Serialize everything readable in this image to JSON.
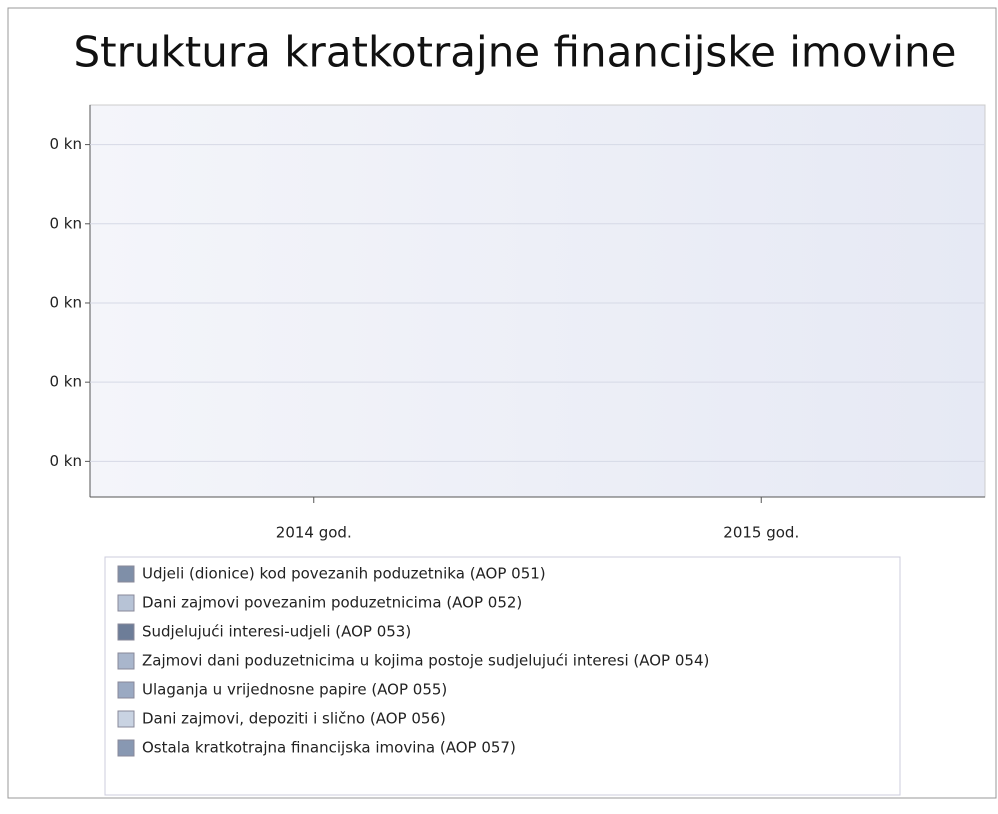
{
  "chart_data": {
    "type": "bar",
    "title": "Struktura kratkotrajne financijske imovine",
    "categories": [
      "2014 god.",
      "2015 god."
    ],
    "series": [
      {
        "name": "Udjeli (dionice) kod povezanih poduzetnika (AOP 051)",
        "color": "#7f8fa8",
        "values": [
          0,
          0
        ]
      },
      {
        "name": "Dani zajmovi povezanim poduzetnicima (AOP 052)",
        "color": "#b7c3d6",
        "values": [
          0,
          0
        ]
      },
      {
        "name": "Sudjelujući interesi-udjeli (AOP 053)",
        "color": "#6d7d98",
        "values": [
          0,
          0
        ]
      },
      {
        "name": "Zajmovi dani poduzetnicima u kojima postoje sudjelujući interesi (AOP 054)",
        "color": "#a9b6cc",
        "values": [
          0,
          0
        ]
      },
      {
        "name": "Ulaganja u vrijednosne papire (AOP 055)",
        "color": "#9aa9c2",
        "values": [
          0,
          0
        ]
      },
      {
        "name": "Dani zajmovi, depoziti i slično (AOP 056)",
        "color": "#c9d3e2",
        "values": [
          0,
          0
        ]
      },
      {
        "name": "Ostala kratkotrajna financijska imovina (AOP 057)",
        "color": "#8898b2",
        "values": [
          0,
          0
        ]
      }
    ],
    "ylim": [
      -0.245,
      0.25
    ],
    "yticks": [
      {
        "value": 0.2,
        "label": "0 kn"
      },
      {
        "value": 0.1,
        "label": "0 kn"
      },
      {
        "value": 0,
        "label": "0 kn"
      },
      {
        "value": -0.1,
        "label": "0 kn"
      },
      {
        "value": -0.2,
        "label": "0 kn"
      }
    ],
    "grid": true
  }
}
